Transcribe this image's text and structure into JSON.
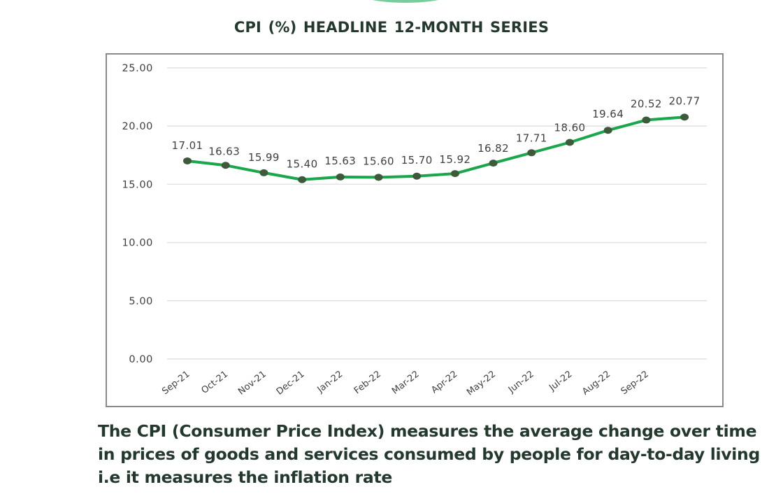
{
  "title": "CPI (%)  HEADLINE 12-MONTH SERIES",
  "description": "The CPI (Consumer Price Index) measures the average change over time in prices of goods and services consumed by people for day-to-day living i.e it measures the inflation rate",
  "colors": {
    "line": "#1aa64a",
    "marker": "#3d5a3a",
    "grid": "#e2e2e2",
    "label_text": "#404040",
    "title_text": "#24392d"
  },
  "chart_data": {
    "type": "line",
    "title": "CPI (%)  HEADLINE 12-MONTH SERIES",
    "xlabel": "",
    "ylabel": "",
    "categories": [
      "Sep-21",
      "Oct-21",
      "Nov-21",
      "Dec-21",
      "Jan-22",
      "Feb-22",
      "Mar-22",
      "Apr-22",
      "May-22",
      "Jun-22",
      "Jul-22",
      "Aug-22",
      "Sep-22",
      ""
    ],
    "series": [
      {
        "name": "CPI (%)",
        "values": [
          17.01,
          16.63,
          15.99,
          15.4,
          15.63,
          15.6,
          15.7,
          15.92,
          16.82,
          17.71,
          18.6,
          19.64,
          20.52,
          20.77
        ]
      }
    ],
    "data_labels": [
      "17.01",
      "16.63",
      "15.99",
      "15.40",
      "15.63",
      "15.60",
      "15.70",
      "15.92",
      "16.82",
      "17.71",
      "18.60",
      "19.64",
      "20.52",
      "20.77"
    ],
    "ylim": [
      0,
      25
    ],
    "yticks": [
      0,
      5,
      10,
      15,
      20,
      25
    ],
    "ytick_labels": [
      "0.00",
      "5.00",
      "10.00",
      "15.00",
      "20.00",
      "25.00"
    ],
    "grid": true,
    "legend": "none"
  }
}
